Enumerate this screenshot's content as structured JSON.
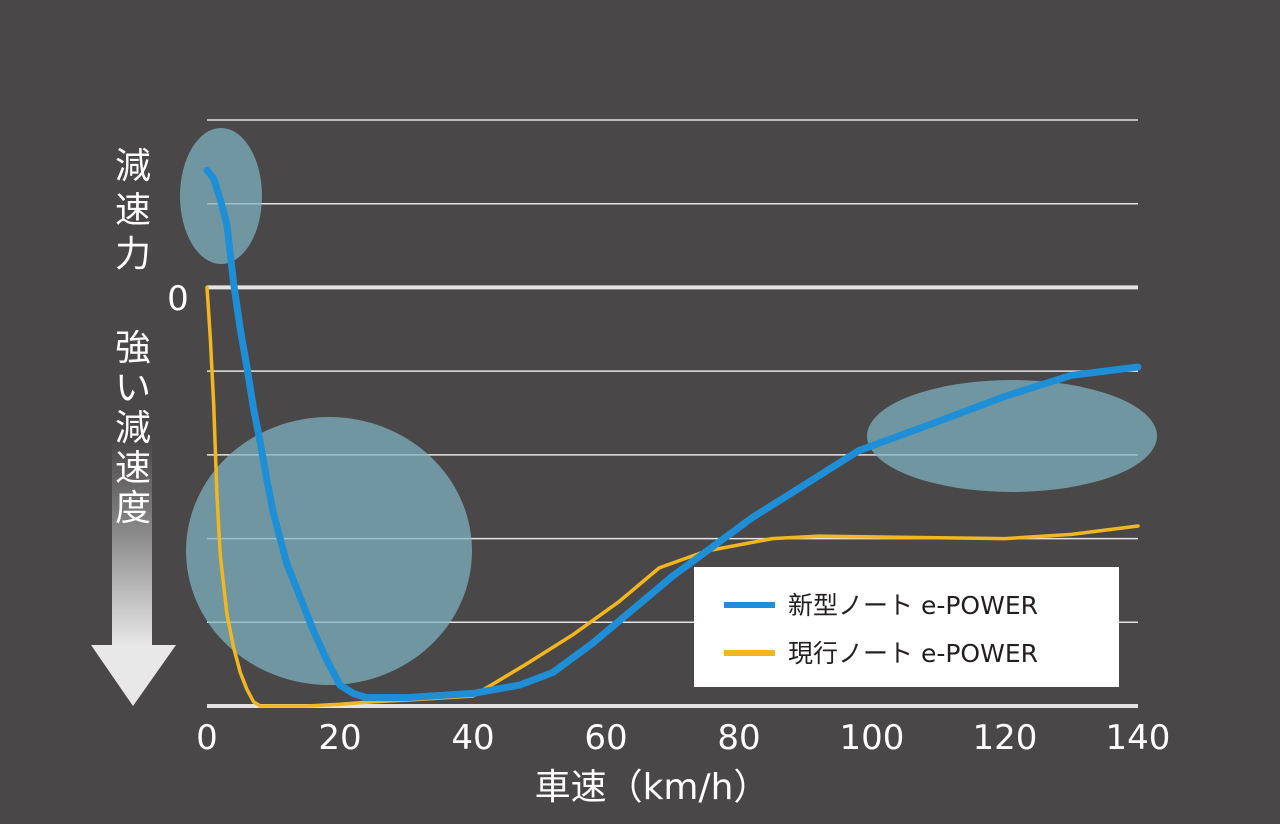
{
  "chart_data": {
    "type": "line",
    "xlabel": "車速（km/h）",
    "ylabel_top": "減速力",
    "ylabel_bottom": "強い減速度",
    "zero_label": "0",
    "x_ticks": [
      0,
      20,
      40,
      60,
      80,
      100,
      120,
      140
    ],
    "xlim": [
      0,
      140
    ],
    "ylim": [
      -5,
      2
    ],
    "y_gridlines": [
      2,
      1,
      0,
      -1,
      -2,
      -3,
      -4,
      -5
    ],
    "y_direction_note": "negative values = stronger deceleration (downward)",
    "grid": "horizontal",
    "legend_position": "bottom-right",
    "series": [
      {
        "name": "新型ノート e-POWER",
        "color": "#1e8fd6",
        "x": [
          0,
          1,
          2,
          3,
          4,
          5,
          6,
          7,
          8,
          9,
          10,
          11,
          12,
          14,
          16,
          18,
          20,
          22,
          24,
          30,
          40,
          47,
          52,
          58,
          64,
          70,
          76,
          82,
          90,
          98,
          110,
          120,
          130,
          140
        ],
        "y": [
          1.4,
          1.3,
          1.05,
          0.75,
          0.05,
          -0.5,
          -0.95,
          -1.45,
          -1.85,
          -2.3,
          -2.7,
          -3.0,
          -3.3,
          -3.7,
          -4.1,
          -4.45,
          -4.75,
          -4.85,
          -4.9,
          -4.9,
          -4.85,
          -4.75,
          -4.6,
          -4.25,
          -3.85,
          -3.45,
          -3.1,
          -2.75,
          -2.35,
          -1.95,
          -1.6,
          -1.3,
          -1.05,
          -0.95
        ]
      },
      {
        "name": "現行ノート e-POWER",
        "color": "#f2b71f",
        "x": [
          0,
          0.5,
          1,
          1.5,
          2,
          3,
          4,
          5,
          6,
          7,
          8,
          10,
          15,
          20,
          25,
          30,
          40,
          48,
          55,
          62,
          68,
          75,
          85,
          92,
          100,
          110,
          120,
          130,
          140
        ],
        "y": [
          0,
          -0.6,
          -1.4,
          -2.5,
          -3.2,
          -3.9,
          -4.3,
          -4.6,
          -4.8,
          -4.95,
          -5.0,
          -5.0,
          -5.0,
          -4.98,
          -4.95,
          -4.93,
          -4.88,
          -4.5,
          -4.15,
          -3.75,
          -3.35,
          -3.15,
          -3.0,
          -2.97,
          -2.98,
          -2.99,
          -3.0,
          -2.95,
          -2.85
        ]
      }
    ]
  },
  "colors": {
    "background": "#4a4748",
    "gridline": "#e3e3e3",
    "highlight": "#7fb5c4",
    "new_series": "#1e8fd6",
    "current_series": "#f2b71f",
    "legend_bg": "#ffffff",
    "legend_text": "#231f20"
  },
  "decorations": {
    "arrow_icon": "down-arrow-gradient",
    "highlight_shape": "translucent-teal-ellipse"
  }
}
